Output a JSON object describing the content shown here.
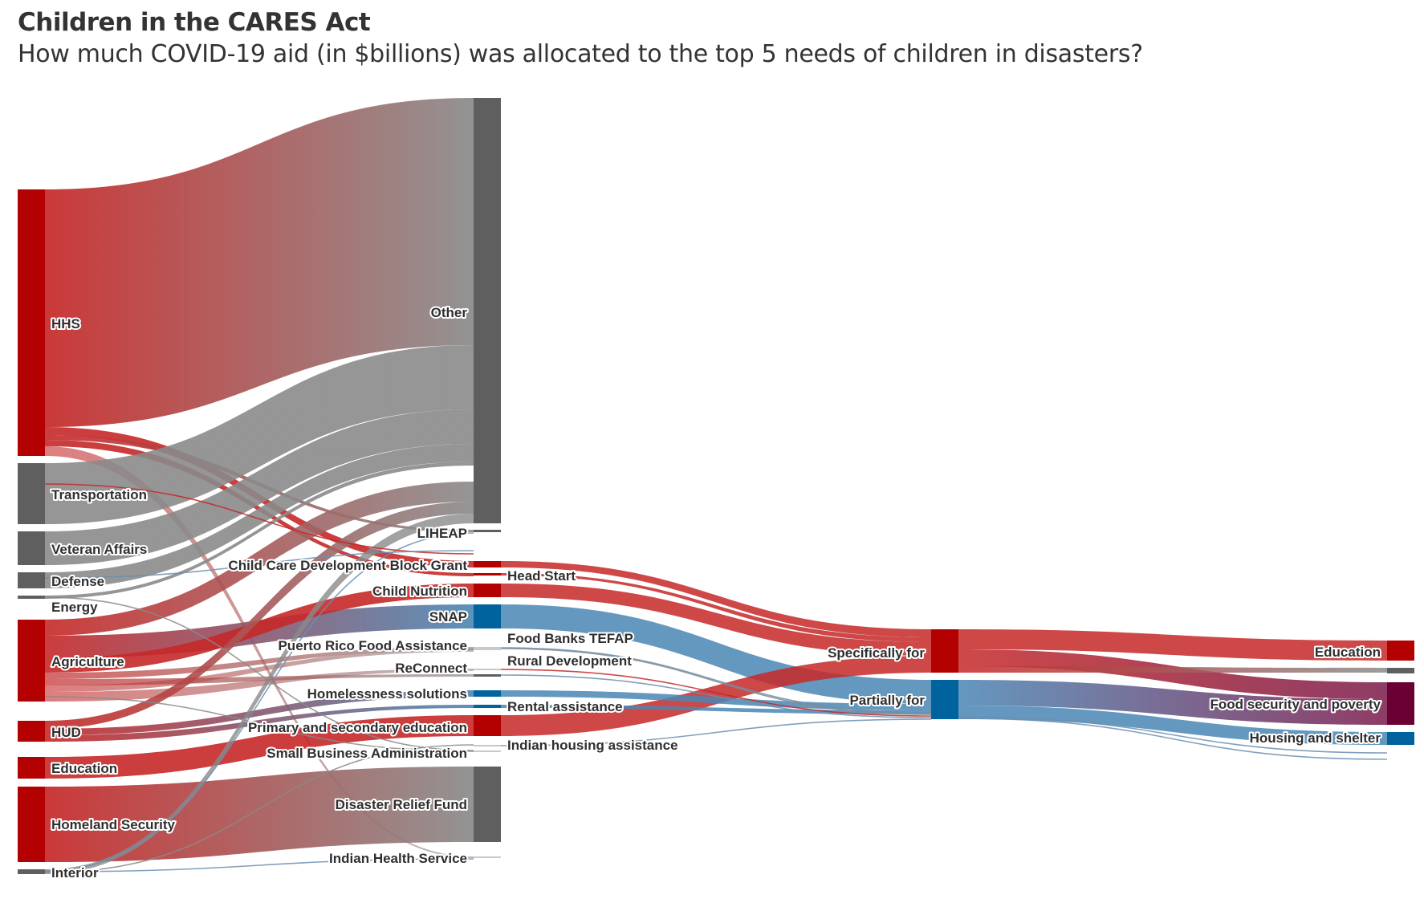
{
  "header": {
    "title": "Children in the CARES Act",
    "subtitle": "How much COVID-19 aid (in $billions) was allocated to the top 5 needs of children in disasters?"
  },
  "colors": {
    "red": "#b30000",
    "gray": "#5f5f5f",
    "blue": "#00639e",
    "maroon": "#6b0033",
    "light": "#c9c9c9"
  },
  "nodes": [
    {
      "id": "hhs",
      "label": "HHS",
      "col": 0,
      "color": "red"
    },
    {
      "id": "transportation",
      "label": "Transportation",
      "col": 0,
      "color": "gray"
    },
    {
      "id": "veteran",
      "label": "Veteran Affairs",
      "col": 0,
      "color": "gray"
    },
    {
      "id": "defense",
      "label": "Defense",
      "col": 0,
      "color": "gray"
    },
    {
      "id": "energy",
      "label": "Energy",
      "col": 0,
      "color": "gray"
    },
    {
      "id": "agriculture",
      "label": "Agriculture",
      "col": 0,
      "color": "red"
    },
    {
      "id": "hud",
      "label": "HUD",
      "col": 0,
      "color": "red"
    },
    {
      "id": "education_dept",
      "label": "Education",
      "col": 0,
      "color": "red"
    },
    {
      "id": "homeland",
      "label": "Homeland Security",
      "col": 0,
      "color": "red"
    },
    {
      "id": "interior",
      "label": "Interior",
      "col": 0,
      "color": "gray"
    },
    {
      "id": "other",
      "label": "Other",
      "col": 1,
      "color": "gray"
    },
    {
      "id": "liheap",
      "label": "LIHEAP",
      "col": 1,
      "color": "gray"
    },
    {
      "id": "ccdbg",
      "label": "Child Care Development Block Grant",
      "col": 1,
      "color": "red"
    },
    {
      "id": "nutrition",
      "label": "Child Nutrition",
      "col": 1,
      "color": "red"
    },
    {
      "id": "snap",
      "label": "SNAP",
      "col": 1,
      "color": "blue"
    },
    {
      "id": "prfood",
      "label": "Puerto Rico Food Assistance",
      "col": 1,
      "color": "light"
    },
    {
      "id": "reconnect",
      "label": "ReConnect",
      "col": 1,
      "color": "gray"
    },
    {
      "id": "homeless",
      "label": "Homelessness solutions",
      "col": 1,
      "color": "blue"
    },
    {
      "id": "primary",
      "label": "Primary and secondary education",
      "col": 1,
      "color": "red"
    },
    {
      "id": "sba",
      "label": "Small Business Administration",
      "col": 1,
      "color": "light"
    },
    {
      "id": "drf",
      "label": "Disaster Relief Fund",
      "col": 1,
      "color": "gray"
    },
    {
      "id": "ihs",
      "label": "Indian Health Service",
      "col": 1,
      "color": "light"
    },
    {
      "id": "headstart",
      "label": "Head Start",
      "col": 1,
      "color": "red"
    },
    {
      "id": "foodbanks",
      "label": "Food Banks TEFAP",
      "col": 1,
      "color": "light"
    },
    {
      "id": "rural",
      "label": "Rural Development",
      "col": 1,
      "color": "light"
    },
    {
      "id": "rental",
      "label": "Rental assistance",
      "col": 1,
      "color": "blue"
    },
    {
      "id": "indianhousing",
      "label": "Indian housing assistance",
      "col": 1,
      "color": "light"
    },
    {
      "id": "specifically",
      "label": "Specifically for",
      "col": 2,
      "color": "red"
    },
    {
      "id": "partially",
      "label": "Partially for",
      "col": 2,
      "color": "blue"
    },
    {
      "id": "education_need",
      "label": "Education",
      "col": 3,
      "color": "red"
    },
    {
      "id": "food_need",
      "label": "Food security and poverty",
      "col": 3,
      "color": "maroon"
    },
    {
      "id": "housing_need",
      "label": "Housing and shelter",
      "col": 3,
      "color": "blue"
    }
  ]
}
